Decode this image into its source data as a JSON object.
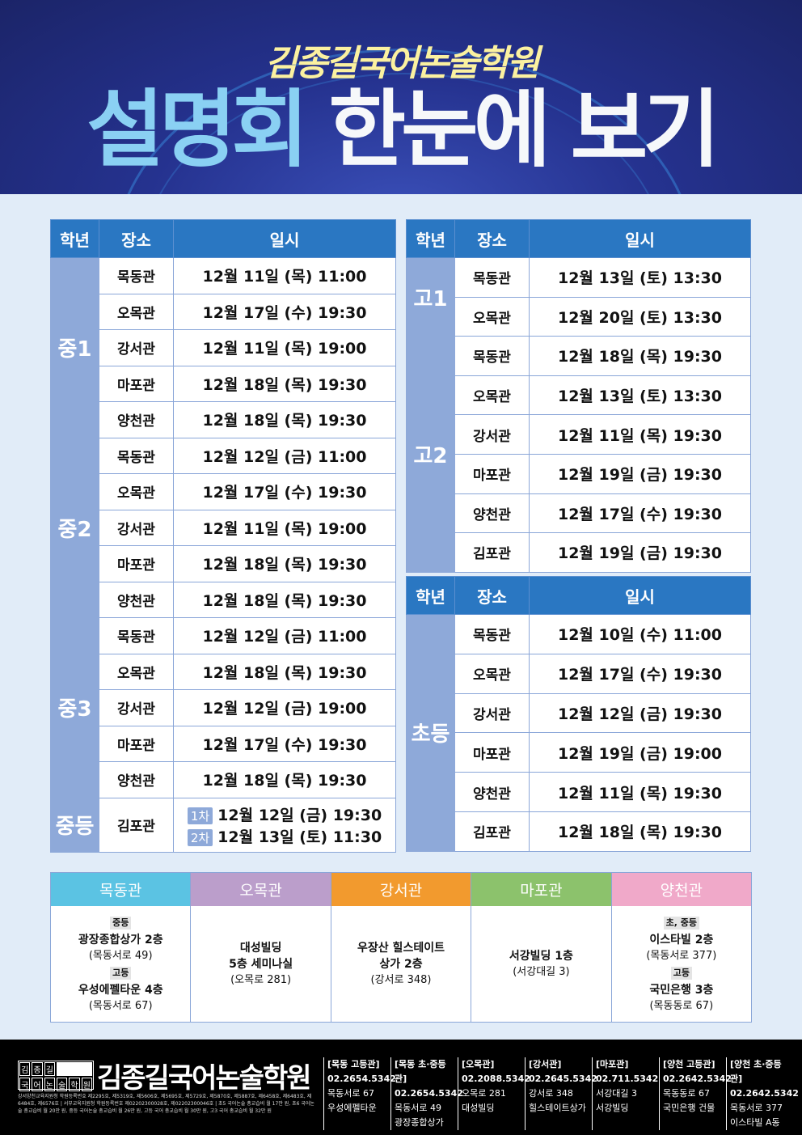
{
  "header": {
    "brand": "김종길국어논술학원",
    "title_a": "설명회",
    "title_b": "한눈에 보기"
  },
  "columns": {
    "grade": "학년",
    "place": "장소",
    "date": "일시"
  },
  "left_table": [
    {
      "grade": "중1",
      "rows": [
        [
          "목동관",
          "12월 11일 (목) 11:00"
        ],
        [
          "오목관",
          "12월 17일 (수) 19:30"
        ],
        [
          "강서관",
          "12월 11일 (목) 19:00"
        ],
        [
          "마포관",
          "12월 18일 (목) 19:30"
        ],
        [
          "양천관",
          "12월 18일 (목) 19:30"
        ]
      ]
    },
    {
      "grade": "중2",
      "rows": [
        [
          "목동관",
          "12월 12일 (금) 11:00"
        ],
        [
          "오목관",
          "12월 17일 (수) 19:30"
        ],
        [
          "강서관",
          "12월 11일 (목) 19:00"
        ],
        [
          "마포관",
          "12월 18일 (목) 19:30"
        ],
        [
          "양천관",
          "12월 18일 (목) 19:30"
        ]
      ]
    },
    {
      "grade": "중3",
      "rows": [
        [
          "목동관",
          "12월 12일 (금) 11:00"
        ],
        [
          "오목관",
          "12월 18일 (목) 19:30"
        ],
        [
          "강서관",
          "12월 12일 (금) 19:00"
        ],
        [
          "마포관",
          "12월 17일 (수) 19:30"
        ],
        [
          "양천관",
          "12월 18일 (목) 19:30"
        ]
      ]
    }
  ],
  "middle_common": {
    "grade": "중등",
    "place": "김포관",
    "sessions": [
      {
        "tag": "1차",
        "date": "12월 12일 (금) 19:30"
      },
      {
        "tag": "2차",
        "date": "12월 13일 (토) 11:30"
      }
    ]
  },
  "right_table": [
    {
      "grade": "고1",
      "rows": [
        [
          "목동관",
          "12월 13일 (토) 13:30"
        ],
        [
          "오목관",
          "12월 20일 (토) 13:30"
        ]
      ]
    },
    {
      "grade": "고2",
      "rows": [
        [
          "목동관",
          "12월 18일 (목) 19:30"
        ],
        [
          "오목관",
          "12월 13일 (토) 13:30"
        ],
        [
          "강서관",
          "12월 11일 (목) 19:30"
        ],
        [
          "마포관",
          "12월 19일 (금) 19:30"
        ],
        [
          "양천관",
          "12월 17일 (수) 19:30"
        ],
        [
          "김포관",
          "12월 19일 (금) 19:30"
        ]
      ]
    }
  ],
  "elementary_table": {
    "grade": "초등",
    "rows": [
      [
        "목동관",
        "12월 10일 (수) 11:00"
      ],
      [
        "오목관",
        "12월 17일 (수) 19:30"
      ],
      [
        "강서관",
        "12월 12일 (금) 19:30"
      ],
      [
        "마포관",
        "12월 19일 (금) 19:00"
      ],
      [
        "양천관",
        "12월 11일 (목) 19:30"
      ],
      [
        "김포관",
        "12월 18일 (목) 19:30"
      ]
    ]
  },
  "locations": [
    {
      "name": "목동관",
      "color": "#5bc3e3",
      "blocks": [
        {
          "label": "중등",
          "name": "광장종합상가 2층",
          "addr": "(목동서로 49)"
        },
        {
          "label": "고등",
          "name": "우성에펠타운 4층",
          "addr": "(목동서로 67)"
        }
      ]
    },
    {
      "name": "오목관",
      "color": "#bb9ecb",
      "blocks": [
        {
          "label": "",
          "name": "대성빌딩\n5층 세미나실",
          "addr": "(오목로 281)"
        }
      ]
    },
    {
      "name": "강서관",
      "color": "#f29a2e",
      "blocks": [
        {
          "label": "",
          "name": "우장산 힐스테이트\n상가 2층",
          "addr": "(강서로 348)"
        }
      ]
    },
    {
      "name": "마포관",
      "color": "#8cc26c",
      "blocks": [
        {
          "label": "",
          "name": "서강빌딩 1층",
          "addr": "(서강대길 3)"
        }
      ]
    },
    {
      "name": "양천관",
      "color": "#f0a9c9",
      "blocks": [
        {
          "label": "초, 중등",
          "name": "이스타빌 2층",
          "addr": "(목동서로 377)"
        },
        {
          "label": "고등",
          "name": "국민은행 3층",
          "addr": "(목동동로 67)"
        }
      ]
    }
  ],
  "footer": {
    "logo_chars": [
      "김",
      "종",
      "길",
      "국",
      "어",
      "논",
      "술",
      "학",
      "원"
    ],
    "name": "김종길국어논술학원",
    "fine_print": "강서양천교육지원청 학원등록번호 제2295호, 제5319호, 제5606호, 제5695호, 제5729호, 제5870호, 제5887호, 제6458호, 제6483호, 제6484호, 제6576호 | 서부교육지원청 학원등록번호 제02202300028호, 제02202300046호 | 초5 국어논술 총교습비 월 17만 원, 초6 국어논술 총교습비 월 20만 원, 중등 국어논술 총교습비 월 26만 원, 고등 국어 총교습비 월 30만 원, 고3 국어 총교습비 월 32만 원",
    "contacts": [
      {
        "name": "[목동 고등관]",
        "phone": "02.2654.5342",
        "addr": "목동서로 67",
        "bldg": "우성에펠타운"
      },
      {
        "name": "[목동 초·중등관]",
        "phone": "02.2654.5342",
        "addr": "목동서로 49",
        "bldg": "광장종합상가"
      },
      {
        "name": "[오목관]",
        "phone": "02.2088.5342",
        "addr": "오목로 281",
        "bldg": "대성빌딩"
      },
      {
        "name": "[강서관]",
        "phone": "02.2645.5342",
        "addr": "강서로 348",
        "bldg": "힐스테이트상가"
      },
      {
        "name": "[마포관]",
        "phone": "02.711.5342",
        "addr": "서강대길 3",
        "bldg": "서강빌딩"
      },
      {
        "name": "[양천 고등관]",
        "phone": "02.2642.5342",
        "addr": "목동동로 67",
        "bldg": "국민은행 건물"
      },
      {
        "name": "[양천 초·중등관]",
        "phone": "02.2642.5342",
        "addr": "목동서로 377",
        "bldg": "이스타빌 A동"
      }
    ]
  }
}
